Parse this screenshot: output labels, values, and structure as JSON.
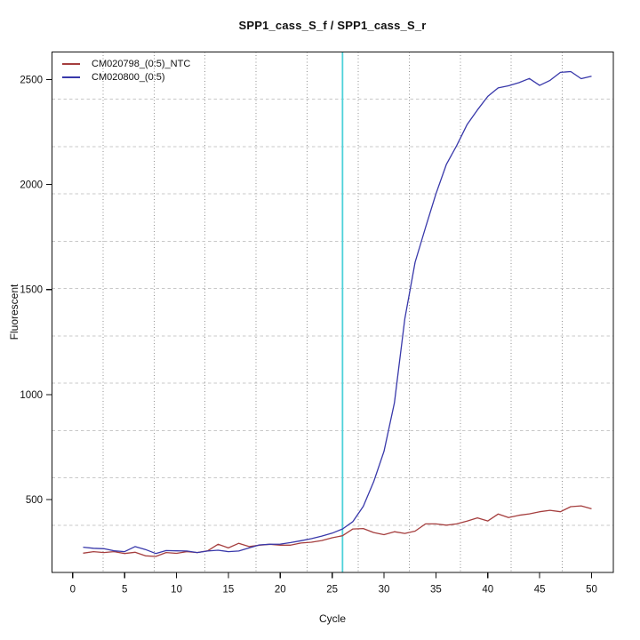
{
  "title": "SPP1_cass_S_f / SPP1_cass_S_r",
  "chart_data": {
    "type": "line",
    "title": "SPP1_cass_S_f / SPP1_cass_S_r",
    "xlabel": "Cycle",
    "ylabel": "Fluorescent",
    "xlim": [
      -2.0,
      52.1
    ],
    "ylim": [
      153,
      2631
    ],
    "x_ticks": [
      0,
      5,
      10,
      15,
      20,
      25,
      30,
      35,
      40,
      45,
      50
    ],
    "y_ticks": [
      500,
      1000,
      1500,
      2000,
      2500
    ],
    "grid": {
      "on": true,
      "nx": 11,
      "ny": 11,
      "h_color": "#c8c8c8",
      "v_color": "#909090"
    },
    "axis_color": "#111111",
    "threshold_line": {
      "x": 26,
      "color": "#4fd2da"
    },
    "legend_position": "top-left",
    "x": [
      1,
      2,
      3,
      4,
      5,
      6,
      7,
      8,
      9,
      10,
      11,
      12,
      13,
      14,
      15,
      16,
      17,
      18,
      19,
      20,
      21,
      22,
      23,
      24,
      25,
      26,
      27,
      28,
      29,
      30,
      31,
      32,
      33,
      34,
      35,
      36,
      37,
      38,
      39,
      40,
      41,
      42,
      43,
      44,
      45,
      46,
      47,
      48,
      49,
      50
    ],
    "series": [
      {
        "name": "CM020798_(0:5)_NTC",
        "color": "#a53e3e",
        "values": [
          245,
          252,
          248,
          252,
          243,
          249,
          232,
          229,
          248,
          244,
          252,
          248,
          256,
          287,
          270,
          292,
          276,
          283,
          287,
          283,
          283,
          293,
          297,
          305,
          318,
          328,
          360,
          362,
          343,
          333,
          347,
          339,
          350,
          384,
          384,
          378,
          384,
          397,
          413,
          398,
          431,
          414,
          425,
          432,
          442,
          449,
          442,
          466,
          470,
          456
        ]
      },
      {
        "name": "CM020800_(0:5)",
        "color": "#3838aa",
        "values": [
          273,
          268,
          266,
          256,
          252,
          276,
          262,
          243,
          257,
          256,
          255,
          248,
          255,
          259,
          252,
          255,
          270,
          284,
          287,
          288,
          295,
          304,
          314,
          326,
          340,
          360,
          395,
          468,
          585,
          730,
          960,
          1360,
          1630,
          1795,
          1955,
          2095,
          2185,
          2285,
          2355,
          2420,
          2460,
          2470,
          2485,
          2505,
          2472,
          2496,
          2534,
          2538,
          2504,
          2516
        ]
      }
    ]
  }
}
